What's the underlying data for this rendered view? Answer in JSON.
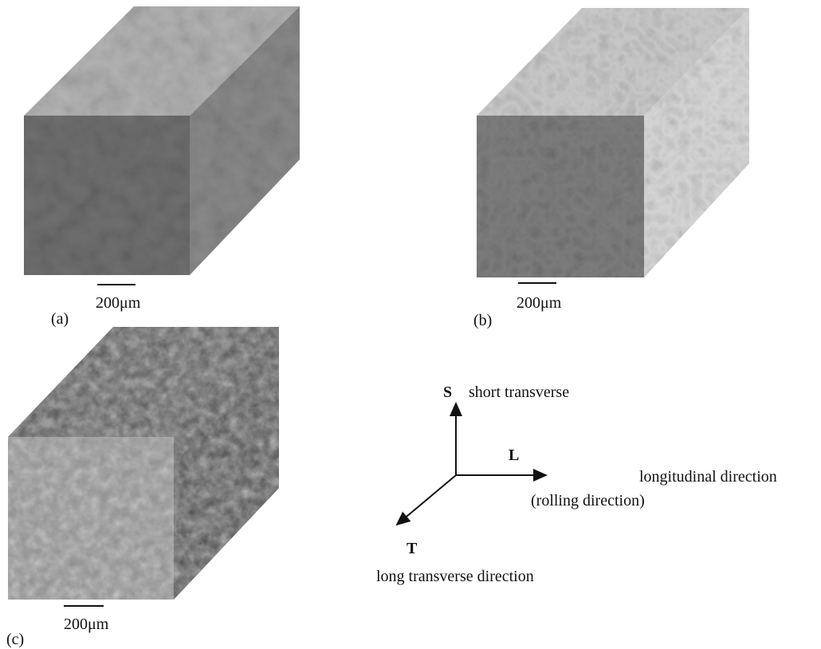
{
  "panels": [
    {
      "label": "(a)",
      "scale": "200μm"
    },
    {
      "label": "(b)",
      "scale": "200μm"
    },
    {
      "label": "(c)",
      "scale": "200μm"
    }
  ],
  "axes": {
    "s": {
      "letter": "S",
      "name": "short transverse"
    },
    "l": {
      "letter": "L",
      "name": "longitudinal direction",
      "note": "(rolling direction)"
    },
    "t": {
      "letter": "T",
      "name": "long transverse direction"
    }
  }
}
